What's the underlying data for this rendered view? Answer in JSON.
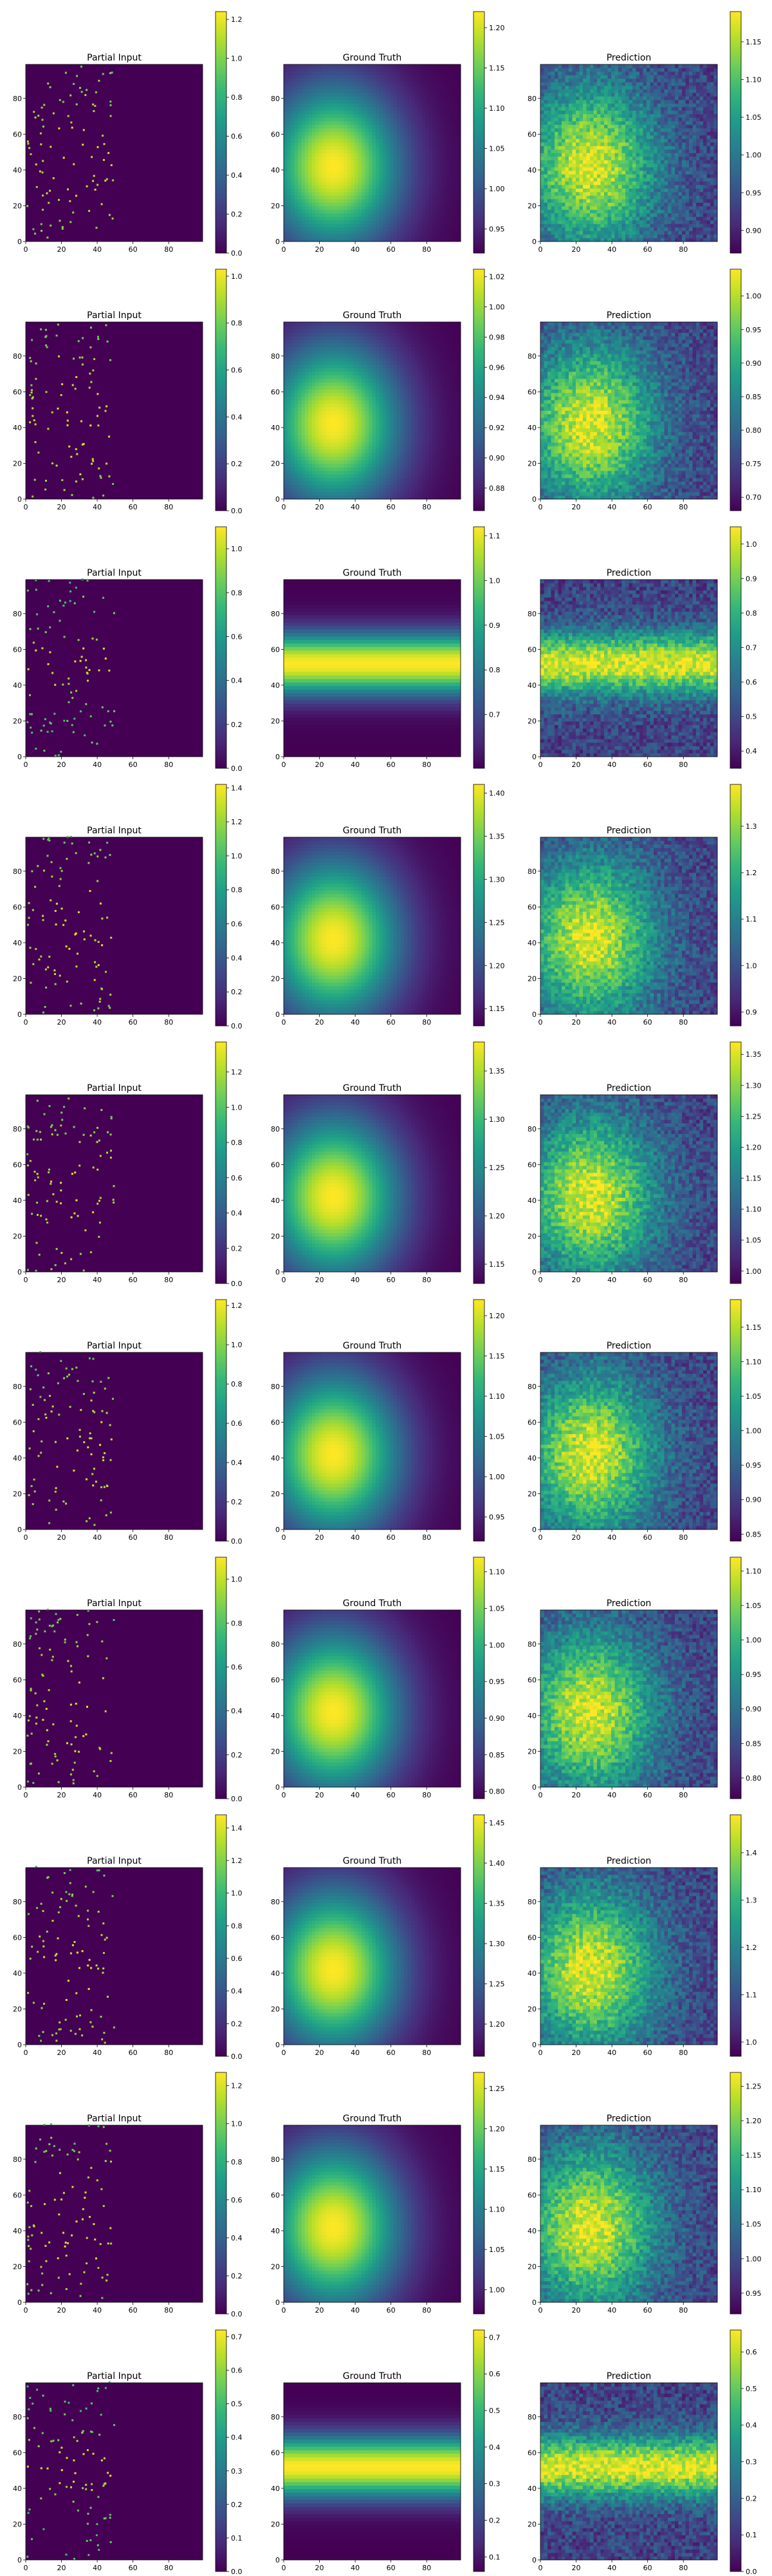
{
  "colormap": "viridis",
  "viridis_stops": [
    "#440154",
    "#482878",
    "#3e4989",
    "#31688e",
    "#26828e",
    "#1f9e89",
    "#35b779",
    "#6ece58",
    "#b5de2b",
    "#fde725"
  ],
  "rows": [
    {
      "panels": [
        {
          "title": "Partial Input",
          "cbar": {
            "min": 0.0,
            "max": 1.24,
            "ticks": [
              "0.0",
              "0.2",
              "0.4",
              "0.6",
              "0.8",
              "1.0",
              "1.2"
            ]
          }
        },
        {
          "title": "Ground Truth",
          "cbar": {
            "min": 0.92,
            "max": 1.22,
            "ticks": [
              "0.95",
              "1.00",
              "1.05",
              "1.10",
              "1.15",
              "1.20"
            ]
          }
        },
        {
          "title": "Prediction",
          "cbar": {
            "min": 0.87,
            "max": 1.19,
            "ticks": [
              "0.90",
              "0.95",
              "1.00",
              "1.05",
              "1.10",
              "1.15"
            ]
          }
        }
      ]
    },
    {
      "panels": [
        {
          "title": "Partial Input",
          "cbar": {
            "min": 0.0,
            "max": 1.03,
            "ticks": [
              "0.0",
              "0.2",
              "0.4",
              "0.6",
              "0.8",
              "1.0"
            ]
          }
        },
        {
          "title": "Ground Truth",
          "cbar": {
            "min": 0.865,
            "max": 1.025,
            "ticks": [
              "0.88",
              "0.90",
              "0.92",
              "0.94",
              "0.96",
              "0.98",
              "1.00",
              "1.02"
            ]
          }
        },
        {
          "title": "Prediction",
          "cbar": {
            "min": 0.68,
            "max": 1.04,
            "ticks": [
              "0.70",
              "0.75",
              "0.80",
              "0.85",
              "0.90",
              "0.95",
              "1.00"
            ]
          }
        }
      ]
    },
    {
      "panels": [
        {
          "title": "Partial Input",
          "cbar": {
            "min": 0.0,
            "max": 1.1,
            "ticks": [
              "0.0",
              "0.2",
              "0.4",
              "0.6",
              "0.8",
              "1.0"
            ]
          }
        },
        {
          "title": "Ground Truth",
          "cbar": {
            "min": 0.58,
            "max": 1.12,
            "ticks": [
              "0.7",
              "0.8",
              "0.9",
              "1.0",
              "1.1"
            ]
          }
        },
        {
          "title": "Prediction",
          "cbar": {
            "min": 0.35,
            "max": 1.05,
            "ticks": [
              "0.4",
              "0.5",
              "0.6",
              "0.7",
              "0.8",
              "0.9",
              "1.0"
            ]
          }
        }
      ]
    },
    {
      "panels": [
        {
          "title": "Partial Input",
          "cbar": {
            "min": 0.0,
            "max": 1.42,
            "ticks": [
              "0.0",
              "0.2",
              "0.4",
              "0.6",
              "0.8",
              "1.0",
              "1.2",
              "1.4"
            ]
          }
        },
        {
          "title": "Ground Truth",
          "cbar": {
            "min": 1.13,
            "max": 1.41,
            "ticks": [
              "1.15",
              "1.20",
              "1.25",
              "1.30",
              "1.35",
              "1.40"
            ]
          }
        },
        {
          "title": "Prediction",
          "cbar": {
            "min": 0.87,
            "max": 1.39,
            "ticks": [
              "0.9",
              "1.0",
              "1.1",
              "1.2",
              "1.3"
            ]
          }
        }
      ]
    },
    {
      "panels": [
        {
          "title": "Partial Input",
          "cbar": {
            "min": 0.0,
            "max": 1.37,
            "ticks": [
              "0.0",
              "0.2",
              "0.4",
              "0.6",
              "0.8",
              "1.0",
              "1.2"
            ]
          }
        },
        {
          "title": "Ground Truth",
          "cbar": {
            "min": 1.13,
            "max": 1.38,
            "ticks": [
              "1.15",
              "1.20",
              "1.25",
              "1.30",
              "1.35"
            ]
          }
        },
        {
          "title": "Prediction",
          "cbar": {
            "min": 0.98,
            "max": 1.37,
            "ticks": [
              "1.00",
              "1.05",
              "1.10",
              "1.15",
              "1.20",
              "1.25",
              "1.30",
              "1.35"
            ]
          }
        }
      ]
    },
    {
      "panels": [
        {
          "title": "Partial Input",
          "cbar": {
            "min": 0.0,
            "max": 1.23,
            "ticks": [
              "0.0",
              "0.2",
              "0.4",
              "0.6",
              "0.8",
              "1.0",
              "1.2"
            ]
          }
        },
        {
          "title": "Ground Truth",
          "cbar": {
            "min": 0.92,
            "max": 1.22,
            "ticks": [
              "0.95",
              "1.00",
              "1.05",
              "1.10",
              "1.15",
              "1.20"
            ]
          }
        },
        {
          "title": "Prediction",
          "cbar": {
            "min": 0.84,
            "max": 1.19,
            "ticks": [
              "0.85",
              "0.90",
              "0.95",
              "1.00",
              "1.05",
              "1.10",
              "1.15"
            ]
          }
        }
      ]
    },
    {
      "panels": [
        {
          "title": "Partial Input",
          "cbar": {
            "min": 0.0,
            "max": 1.1,
            "ticks": [
              "0.0",
              "0.2",
              "0.4",
              "0.6",
              "0.8",
              "1.0"
            ]
          }
        },
        {
          "title": "Ground Truth",
          "cbar": {
            "min": 0.79,
            "max": 1.12,
            "ticks": [
              "0.80",
              "0.85",
              "0.90",
              "0.95",
              "1.00",
              "1.05",
              "1.10"
            ]
          }
        },
        {
          "title": "Prediction",
          "cbar": {
            "min": 0.77,
            "max": 1.12,
            "ticks": [
              "0.80",
              "0.85",
              "0.90",
              "0.95",
              "1.00",
              "1.05",
              "1.10"
            ]
          }
        }
      ]
    },
    {
      "panels": [
        {
          "title": "Partial Input",
          "cbar": {
            "min": 0.0,
            "max": 1.48,
            "ticks": [
              "0.0",
              "0.2",
              "0.4",
              "0.6",
              "0.8",
              "1.0",
              "1.2",
              "1.4"
            ]
          }
        },
        {
          "title": "Ground Truth",
          "cbar": {
            "min": 1.16,
            "max": 1.46,
            "ticks": [
              "1.20",
              "1.25",
              "1.30",
              "1.35",
              "1.40",
              "1.45"
            ]
          }
        },
        {
          "title": "Prediction",
          "cbar": {
            "min": 0.97,
            "max": 1.48,
            "ticks": [
              "1.0",
              "1.1",
              "1.2",
              "1.3",
              "1.4"
            ]
          }
        }
      ]
    },
    {
      "panels": [
        {
          "title": "Partial Input",
          "cbar": {
            "min": 0.0,
            "max": 1.27,
            "ticks": [
              "0.0",
              "0.2",
              "0.4",
              "0.6",
              "0.8",
              "1.0",
              "1.2"
            ]
          }
        },
        {
          "title": "Ground Truth",
          "cbar": {
            "min": 0.97,
            "max": 1.27,
            "ticks": [
              "1.00",
              "1.05",
              "1.10",
              "1.15",
              "1.20",
              "1.25"
            ]
          }
        },
        {
          "title": "Prediction",
          "cbar": {
            "min": 0.92,
            "max": 1.27,
            "ticks": [
              "0.95",
              "1.00",
              "1.05",
              "1.10",
              "1.15",
              "1.20",
              "1.25"
            ]
          }
        }
      ]
    },
    {
      "panels": [
        {
          "title": "Partial Input",
          "cbar": {
            "min": 0.0,
            "max": 0.72,
            "ticks": [
              "0.0",
              "0.1",
              "0.2",
              "0.3",
              "0.4",
              "0.5",
              "0.6",
              "0.7"
            ]
          }
        },
        {
          "title": "Ground Truth",
          "cbar": {
            "min": 0.06,
            "max": 0.72,
            "ticks": [
              "0.1",
              "0.2",
              "0.3",
              "0.4",
              "0.5",
              "0.6",
              "0.7"
            ]
          }
        },
        {
          "title": "Prediction",
          "cbar": {
            "min": 0.0,
            "max": 0.66,
            "ticks": [
              "0.0",
              "0.1",
              "0.2",
              "0.3",
              "0.4",
              "0.5",
              "0.6"
            ]
          }
        }
      ]
    }
  ],
  "chart_data": {
    "type": "heatmap",
    "layout": "10 rows x 3 columns of heatmaps, each with its own colorbar",
    "xlim": [
      0,
      99
    ],
    "ylim": [
      0,
      99
    ],
    "x_tick_labels": [
      "0",
      "20",
      "40",
      "60",
      "80"
    ],
    "y_tick_labels": [
      "0",
      "20",
      "40",
      "60",
      "80"
    ],
    "columns": [
      "Partial Input",
      "Ground Truth",
      "Prediction"
    ],
    "ground_truth_patterns": [
      "gaussian-peak",
      "gaussian-peak",
      "horizontal-band",
      "gaussian-peak",
      "gaussian-peak",
      "gaussian-peak",
      "gaussian-peak",
      "gaussian-peak",
      "gaussian-peak",
      "horizontal-band"
    ],
    "partial_input_note": "sparse samples from the left half (x < 50), zero elsewhere"
  }
}
